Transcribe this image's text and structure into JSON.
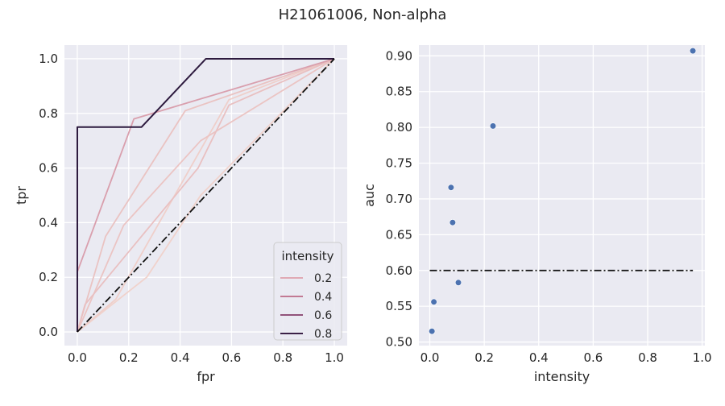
{
  "figure": {
    "title": "H21061006, Non-alpha"
  },
  "chart_data": [
    {
      "type": "line",
      "xlabel": "fpr",
      "ylabel": "tpr",
      "xlim": [
        -0.05,
        1.05
      ],
      "ylim": [
        -0.05,
        1.05
      ],
      "xticks": [
        "0.0",
        "0.2",
        "0.4",
        "0.6",
        "0.8",
        "1.0"
      ],
      "yticks": [
        "0.0",
        "0.2",
        "0.4",
        "0.6",
        "0.8",
        "1.0"
      ],
      "grid": true,
      "legend": {
        "title": "intensity",
        "placement": "lower-right",
        "entries": [
          {
            "label": "0.2",
            "color": "#e0a9b4"
          },
          {
            "label": "0.4",
            "color": "#c27a94"
          },
          {
            "label": "0.6",
            "color": "#91537b"
          },
          {
            "label": "0.8",
            "color": "#3b2147"
          }
        ]
      },
      "series": [
        {
          "intensity": 0.008,
          "color": "#f0d2cc",
          "points": [
            [
              0,
              0
            ],
            [
              0.27,
              0.2
            ],
            [
              0.48,
              0.5
            ],
            [
              1,
              1
            ]
          ]
        },
        {
          "intensity": 0.015,
          "color": "#efcfca",
          "points": [
            [
              0,
              0
            ],
            [
              0.15,
              0.12
            ],
            [
              0.59,
              0.85
            ],
            [
              1,
              1
            ]
          ]
        },
        {
          "intensity": 0.078,
          "color": "#ebc4c3",
          "points": [
            [
              0,
              0
            ],
            [
              0.18,
              0.39
            ],
            [
              0.48,
              0.7
            ],
            [
              1,
              1
            ]
          ]
        },
        {
          "intensity": 0.084,
          "color": "#eac3c2",
          "points": [
            [
              0,
              0
            ],
            [
              0.11,
              0.35
            ],
            [
              0.42,
              0.81
            ],
            [
              1,
              1
            ]
          ]
        },
        {
          "intensity": 0.105,
          "color": "#e9c0c1",
          "points": [
            [
              0,
              0
            ],
            [
              0.03,
              0.1
            ],
            [
              0.47,
              0.6
            ],
            [
              0.59,
              0.83
            ],
            [
              1,
              1
            ]
          ]
        },
        {
          "intensity": 0.232,
          "color": "#d99fad",
          "points": [
            [
              0,
              0.22
            ],
            [
              0.22,
              0.78
            ],
            [
              1,
              1
            ]
          ]
        },
        {
          "intensity": 0.966,
          "color": "#2d1a3e",
          "points": [
            [
              0,
              0
            ],
            [
              0,
              0.75
            ],
            [
              0.25,
              0.75
            ],
            [
              0.5,
              1
            ],
            [
              1,
              1
            ]
          ]
        }
      ],
      "reference_line": {
        "style": "dash-dot",
        "color": "#111111",
        "points": [
          [
            0,
            0
          ],
          [
            1,
            1
          ]
        ]
      }
    },
    {
      "type": "scatter",
      "xlabel": "intensity",
      "ylabel": "auc",
      "xlim": [
        -0.04,
        1.01
      ],
      "ylim": [
        0.495,
        0.915
      ],
      "xticks": [
        "0.0",
        "0.2",
        "0.4",
        "0.6",
        "0.8",
        "1.0"
      ],
      "yticks": [
        "0.50",
        "0.55",
        "0.60",
        "0.65",
        "0.70",
        "0.75",
        "0.80",
        "0.85",
        "0.90"
      ],
      "grid": true,
      "point_color": "#4c72b0",
      "points": [
        [
          0.008,
          0.515
        ],
        [
          0.015,
          0.556
        ],
        [
          0.078,
          0.716
        ],
        [
          0.084,
          0.667
        ],
        [
          0.105,
          0.583
        ],
        [
          0.232,
          0.802
        ],
        [
          0.966,
          0.907
        ]
      ],
      "reference_line": {
        "style": "dash-dot",
        "color": "#111111",
        "points": [
          [
            0.0,
            0.6
          ],
          [
            0.966,
            0.6
          ]
        ]
      }
    }
  ]
}
